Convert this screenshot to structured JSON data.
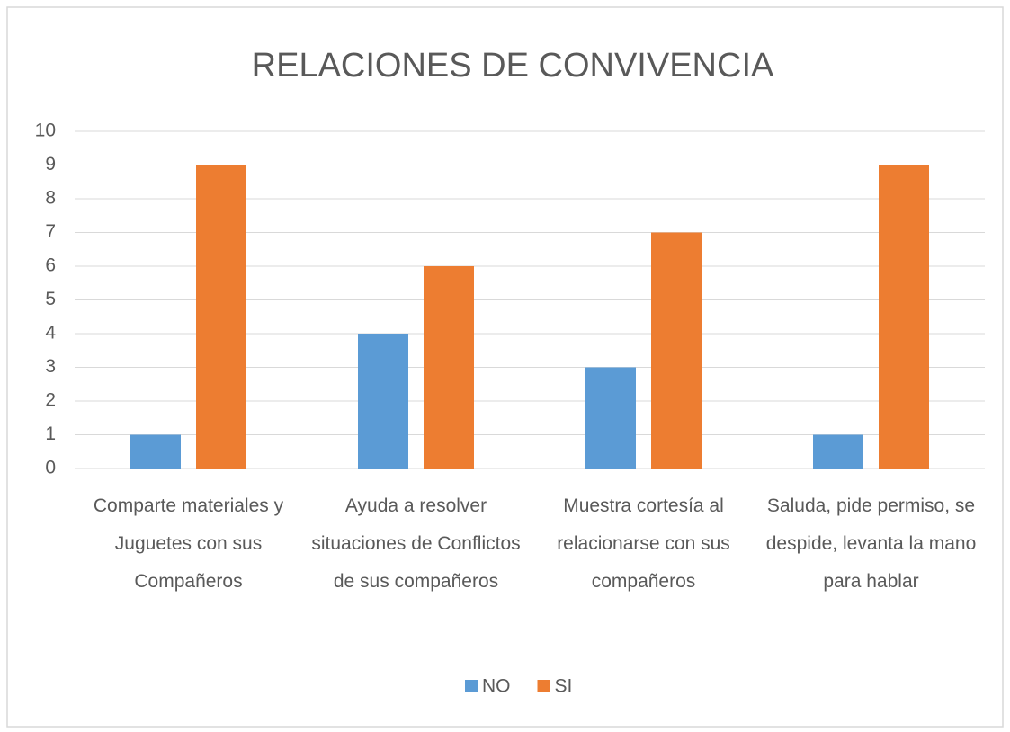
{
  "chart_data": {
    "type": "bar",
    "title": "RELACIONES  DE  CONVIVENCIA",
    "categories": [
      "Comparte materiales y Juguetes con sus Compañeros",
      "Ayuda a resolver situaciones de Conflictos de sus compañeros",
      "Muestra cortesía al relacionarse con sus compañeros",
      "Saluda, pide permiso, se despide, levanta la mano para hablar"
    ],
    "series": [
      {
        "name": "NO",
        "color": "#5b9bd5",
        "values": [
          1,
          4,
          3,
          1
        ]
      },
      {
        "name": "SI",
        "color": "#ed7d31",
        "values": [
          9,
          6,
          7,
          9
        ]
      }
    ],
    "ylim": [
      0,
      10
    ],
    "yticks": [
      0,
      1,
      2,
      3,
      4,
      5,
      6,
      7,
      8,
      9,
      10
    ],
    "grid": true,
    "legend": "bottom"
  }
}
